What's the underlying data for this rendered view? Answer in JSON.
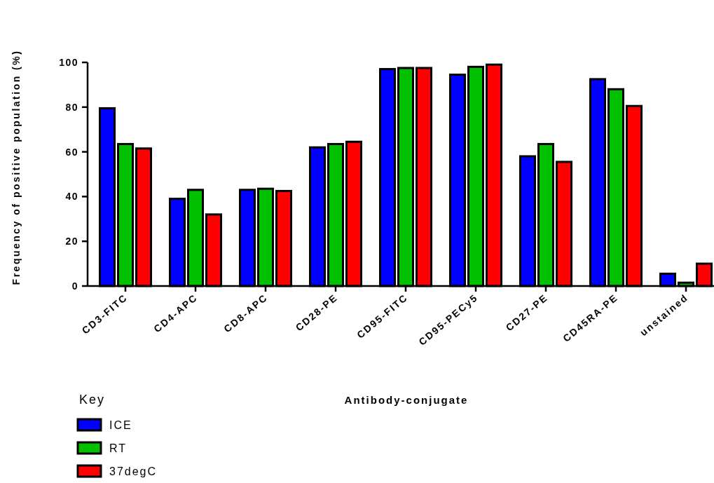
{
  "chart_data": {
    "type": "bar",
    "ylabel": "Frequency of positive population (%)",
    "xlabel": "Antibody-conjugate",
    "legend_title": "Key",
    "legend": "bottom left",
    "grid": false,
    "categories": [
      "CD3-FITC",
      "CD4-APC",
      "CD8-APC",
      "CD28-PE",
      "CD95-FITC",
      "CD95-PECy5",
      "CD27-PE",
      "CD45RA-PE",
      "unstained"
    ],
    "ylim": [
      0,
      100
    ],
    "yticks": [
      0,
      20,
      40,
      60,
      80,
      100
    ],
    "series": [
      {
        "name": "ICE",
        "color": "#0000ff",
        "values": [
          79.5,
          39,
          43,
          62,
          97,
          94.5,
          58,
          92.5,
          5.5
        ]
      },
      {
        "name": "RT",
        "color": "#00c000",
        "values": [
          63.5,
          43,
          43.5,
          63.5,
          97.5,
          98,
          63.5,
          88,
          1.5
        ]
      },
      {
        "name": "37degC",
        "color": "#ff0000",
        "values": [
          61.5,
          32,
          42.5,
          64.5,
          97.5,
          99,
          55.5,
          80.5,
          10
        ]
      }
    ]
  }
}
